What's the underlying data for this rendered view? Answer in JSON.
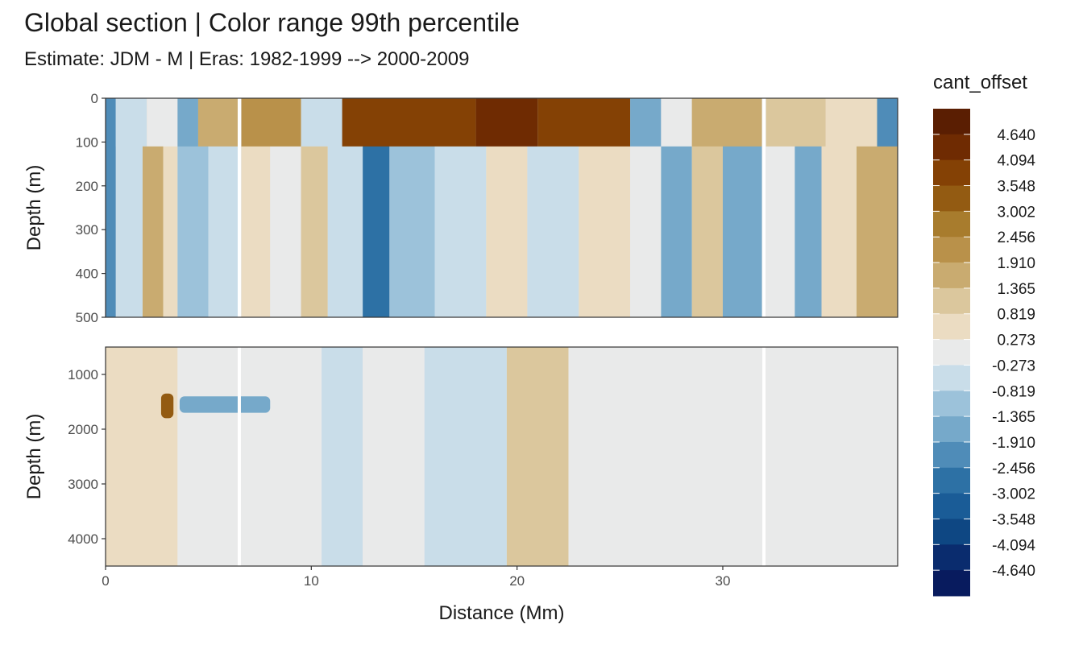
{
  "chart_data": {
    "type": "heatmap",
    "title": "Global section | Color range 99th percentile",
    "subtitle": "Estimate: JDM - M | Eras: 1982-1999 --> 2000-2009",
    "xlabel": "Distance (Mm)",
    "xlim": [
      0,
      38.5
    ],
    "xticks": [
      0,
      10,
      20,
      30
    ],
    "panels": [
      {
        "ylabel": "Depth (m)",
        "ylim": [
          0,
          500
        ],
        "yticks": [
          0,
          100,
          200,
          300,
          400,
          500
        ],
        "gaps_x": [
          6.5,
          32.0
        ],
        "bands": [
          {
            "x": [
              0,
              0.5
            ],
            "level": -4
          },
          {
            "x": [
              0.5,
              1.8
            ],
            "level": -1
          },
          {
            "x": [
              1.8,
              2.8
            ],
            "level": 3
          },
          {
            "x": [
              2.8,
              3.5
            ],
            "level": 1
          },
          {
            "x": [
              3.5,
              5.0
            ],
            "level": -2
          },
          {
            "x": [
              5.0,
              6.5
            ],
            "level": -1
          },
          {
            "x": [
              6.6,
              8.0
            ],
            "level": 1
          },
          {
            "x": [
              8.0,
              9.5
            ],
            "level": 0
          },
          {
            "x": [
              9.5,
              10.8
            ],
            "level": 2
          },
          {
            "x": [
              10.8,
              12.5
            ],
            "level": -1
          },
          {
            "x": [
              12.5,
              13.8
            ],
            "level": -5
          },
          {
            "x": [
              13.8,
              16.0
            ],
            "level": -2
          },
          {
            "x": [
              16.0,
              18.5
            ],
            "level": -1
          },
          {
            "x": [
              18.5,
              20.5
            ],
            "level": 1
          },
          {
            "x": [
              20.5,
              23.0
            ],
            "level": -1
          },
          {
            "x": [
              23.0,
              25.5
            ],
            "level": 1
          },
          {
            "x": [
              25.5,
              27.0
            ],
            "level": 0
          },
          {
            "x": [
              27.0,
              28.5
            ],
            "level": -3
          },
          {
            "x": [
              28.5,
              30.0
            ],
            "level": 2
          },
          {
            "x": [
              30.0,
              31.9
            ],
            "level": -3
          },
          {
            "x": [
              32.1,
              33.5
            ],
            "level": 0
          },
          {
            "x": [
              33.5,
              34.8
            ],
            "level": -3
          },
          {
            "x": [
              34.8,
              36.5
            ],
            "level": 1
          },
          {
            "x": [
              36.5,
              38.5
            ],
            "level": 3
          }
        ],
        "top_layer": [
          {
            "x": [
              0.5,
              2.0
            ],
            "level": -1
          },
          {
            "x": [
              2.0,
              3.5
            ],
            "level": 0
          },
          {
            "x": [
              3.5,
              4.5
            ],
            "level": -3
          },
          {
            "x": [
              4.5,
              6.5
            ],
            "level": 3
          },
          {
            "x": [
              6.6,
              9.5
            ],
            "level": 4
          },
          {
            "x": [
              9.5,
              11.5
            ],
            "level": -1
          },
          {
            "x": [
              11.5,
              18.0
            ],
            "level": 7
          },
          {
            "x": [
              18.0,
              21.0
            ],
            "level": 8
          },
          {
            "x": [
              21.0,
              25.5
            ],
            "level": 7
          },
          {
            "x": [
              25.5,
              27.0
            ],
            "level": -3
          },
          {
            "x": [
              27.0,
              28.5
            ],
            "level": 0
          },
          {
            "x": [
              28.5,
              31.9
            ],
            "level": 3
          },
          {
            "x": [
              32.1,
              35.0
            ],
            "level": 2
          },
          {
            "x": [
              35.0,
              37.5
            ],
            "level": 1
          },
          {
            "x": [
              37.5,
              38.5
            ],
            "level": -4
          }
        ]
      },
      {
        "ylabel": "Depth (m)",
        "ylim": [
          500,
          4500
        ],
        "yticks": [
          1000,
          2000,
          3000,
          4000
        ],
        "gaps_x": [
          6.5,
          32.0
        ],
        "bands": [
          {
            "x": [
              0,
              3.5
            ],
            "level": 1
          },
          {
            "x": [
              3.5,
              10.5
            ],
            "level": 0
          },
          {
            "x": [
              10.5,
              12.5
            ],
            "level": -1
          },
          {
            "x": [
              12.5,
              15.5
            ],
            "level": 0
          },
          {
            "x": [
              15.5,
              19.5
            ],
            "level": -1
          },
          {
            "x": [
              19.5,
              22.5
            ],
            "level": 2
          },
          {
            "x": [
              22.5,
              28.0
            ],
            "level": 0
          },
          {
            "x": [
              28.0,
              38.5
            ],
            "level": 0
          }
        ],
        "features": [
          {
            "x": [
              2.7,
              3.3
            ],
            "depth": [
              1350,
              1800
            ],
            "level": 6
          },
          {
            "x": [
              3.6,
              8.0
            ],
            "depth": [
              1400,
              1700
            ],
            "level": -3
          }
        ]
      }
    ],
    "legend": {
      "title": "cant_offset",
      "placement": "right",
      "levels": [
        "4.640",
        "4.094",
        "3.548",
        "3.002",
        "2.456",
        "1.910",
        "1.365",
        "0.819",
        "0.273",
        "-0.273",
        "-0.819",
        "-1.365",
        "-1.910",
        "-2.456",
        "-3.002",
        "-3.548",
        "-4.094",
        "-4.640"
      ],
      "colors": [
        "#5a1e02",
        "#6f2b02",
        "#844105",
        "#935b12",
        "#a87c2d",
        "#b9914a",
        "#c9ab70",
        "#dbc79d",
        "#ebdcc2",
        "#e9eaea",
        "#c9dde9",
        "#9cc2da",
        "#76a9ca",
        "#4f8cb8",
        "#2d71a5",
        "#1a5c97",
        "#0e4783",
        "#0a2c6e",
        "#081b5e"
      ]
    }
  }
}
